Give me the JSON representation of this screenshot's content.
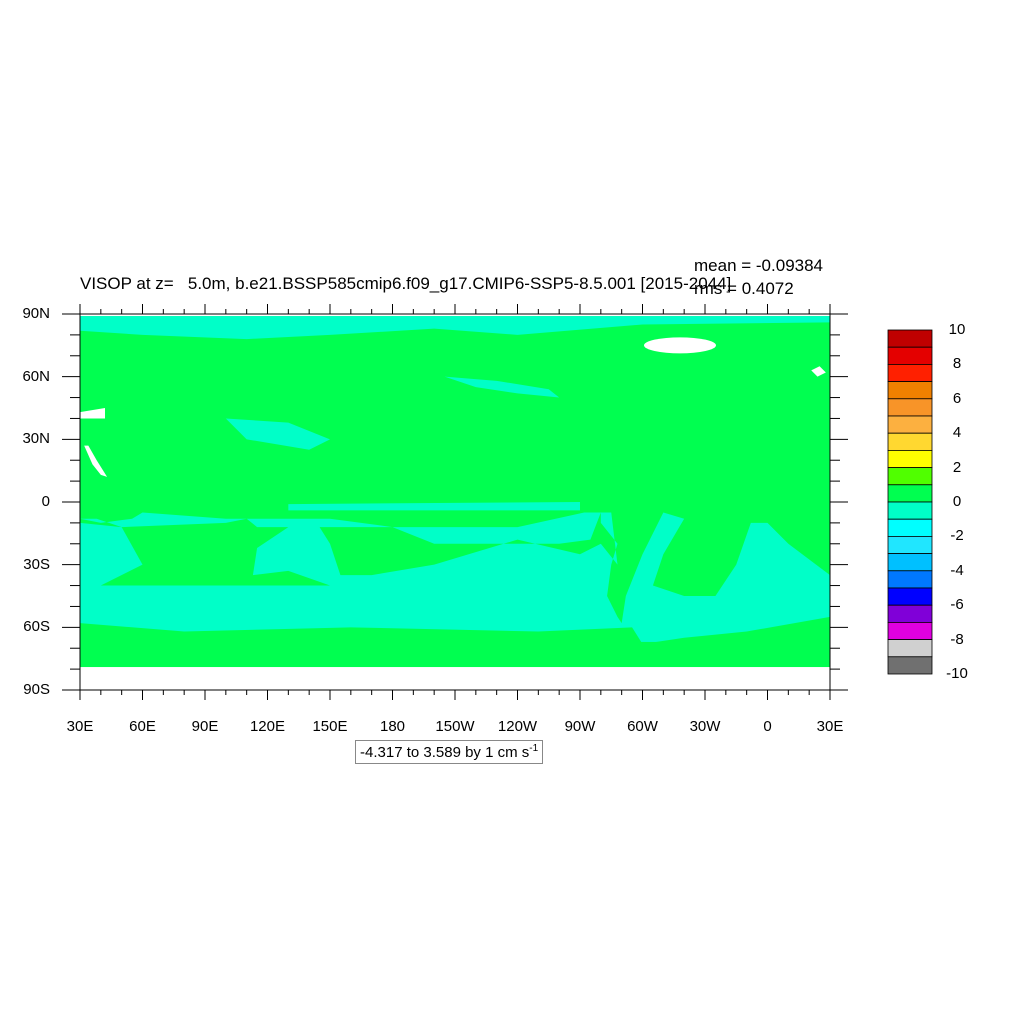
{
  "title": "VISOP at z=   5.0m, b.e21.BSSP585cmip6.f09_g17.CMIP6-SSP5-8.5.001 [2015-2044]",
  "stats": {
    "mean": "mean = -0.09384",
    "rms": "rms = 0.4072"
  },
  "info_box": {
    "text": "-4.317 to 3.589 by 1 cm s",
    "superscript": "-1"
  },
  "chart_data": {
    "type": "map-contour",
    "projection": "cylindrical equidistant",
    "x_ticks": [
      "30E",
      "60E",
      "90E",
      "120E",
      "150E",
      "180",
      "150W",
      "120W",
      "90W",
      "60W",
      "30W",
      "0",
      "30E"
    ],
    "y_ticks": [
      "90N",
      "60N",
      "30N",
      "0",
      "30S",
      "60S",
      "90S"
    ],
    "lon_range": [
      30,
      390
    ],
    "lat_range": [
      -90,
      90
    ],
    "colorbar": {
      "labels": [
        "10",
        "8",
        "6",
        "4",
        "2",
        "0",
        "-2",
        "-4",
        "-6",
        "-8",
        "-10"
      ],
      "levels": [
        -10,
        -9,
        -8,
        -7,
        -6,
        -5,
        -4,
        -3,
        -2,
        -1,
        0,
        1,
        2,
        3,
        4,
        5,
        6,
        7,
        8,
        9,
        10
      ],
      "colors": [
        "#bf0000",
        "#e40000",
        "#ff2000",
        "#f08000",
        "#f89428",
        "#fcb040",
        "#ffd830",
        "#ffff00",
        "#50ff00",
        "#00ff50",
        "#00ffc8",
        "#00ffff",
        "#20e6ff",
        "#00c0ff",
        "#0078ff",
        "#0000ff",
        "#8000d8",
        "#e000e0",
        "#d0d0d0",
        "#707070"
      ]
    },
    "dominant_fields": {
      "near_zero_positive": "#00ff50",
      "near_zero_negative": "#00ffc8",
      "missing": "#ffffff"
    }
  }
}
